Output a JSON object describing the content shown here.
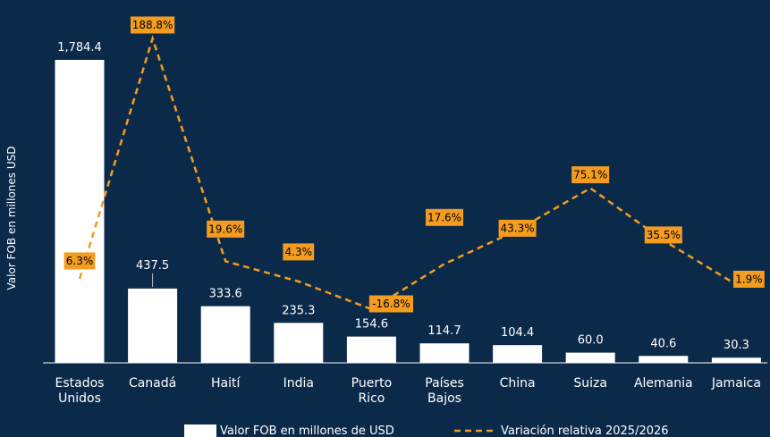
{
  "chart_data": {
    "type": "bar",
    "ylabel": "Valor FOB en millones USD",
    "categories": [
      [
        "Estados",
        "Unidos"
      ],
      [
        "Canadá"
      ],
      [
        "Haití"
      ],
      [
        "India"
      ],
      [
        "Puerto",
        "Rico"
      ],
      [
        "Países",
        "Bajos"
      ],
      [
        "China"
      ],
      [
        "Suiza"
      ],
      [
        "Alemania"
      ],
      [
        "Jamaica"
      ]
    ],
    "series": [
      {
        "name": "Valor FOB en millones de USD",
        "type": "bar",
        "color": "#ffffff",
        "values": [
          1784.4,
          437.5,
          333.6,
          235.3,
          154.6,
          114.7,
          104.4,
          60.0,
          40.6,
          30.3
        ],
        "labels": [
          "1,784.4",
          "437.5",
          "333.6",
          "235.3",
          "154.6",
          "114.7",
          "104.4",
          "60.0",
          "40.6",
          "30.3"
        ]
      },
      {
        "name": "Variación relativa 2025/2026",
        "type": "line",
        "style": "dashed",
        "color": "#f39c1f",
        "values": [
          6.3,
          188.8,
          19.6,
          4.3,
          -16.8,
          17.6,
          43.3,
          75.1,
          35.5,
          1.9
        ],
        "labels": [
          "6.3%",
          "188.8%",
          "19.6%",
          "4.3%",
          "-16.8%",
          "17.6%",
          "43.3%",
          "75.1%",
          "35.5%",
          "1.9%"
        ]
      }
    ],
    "legend": {
      "position": "bottom"
    },
    "grid": false
  }
}
